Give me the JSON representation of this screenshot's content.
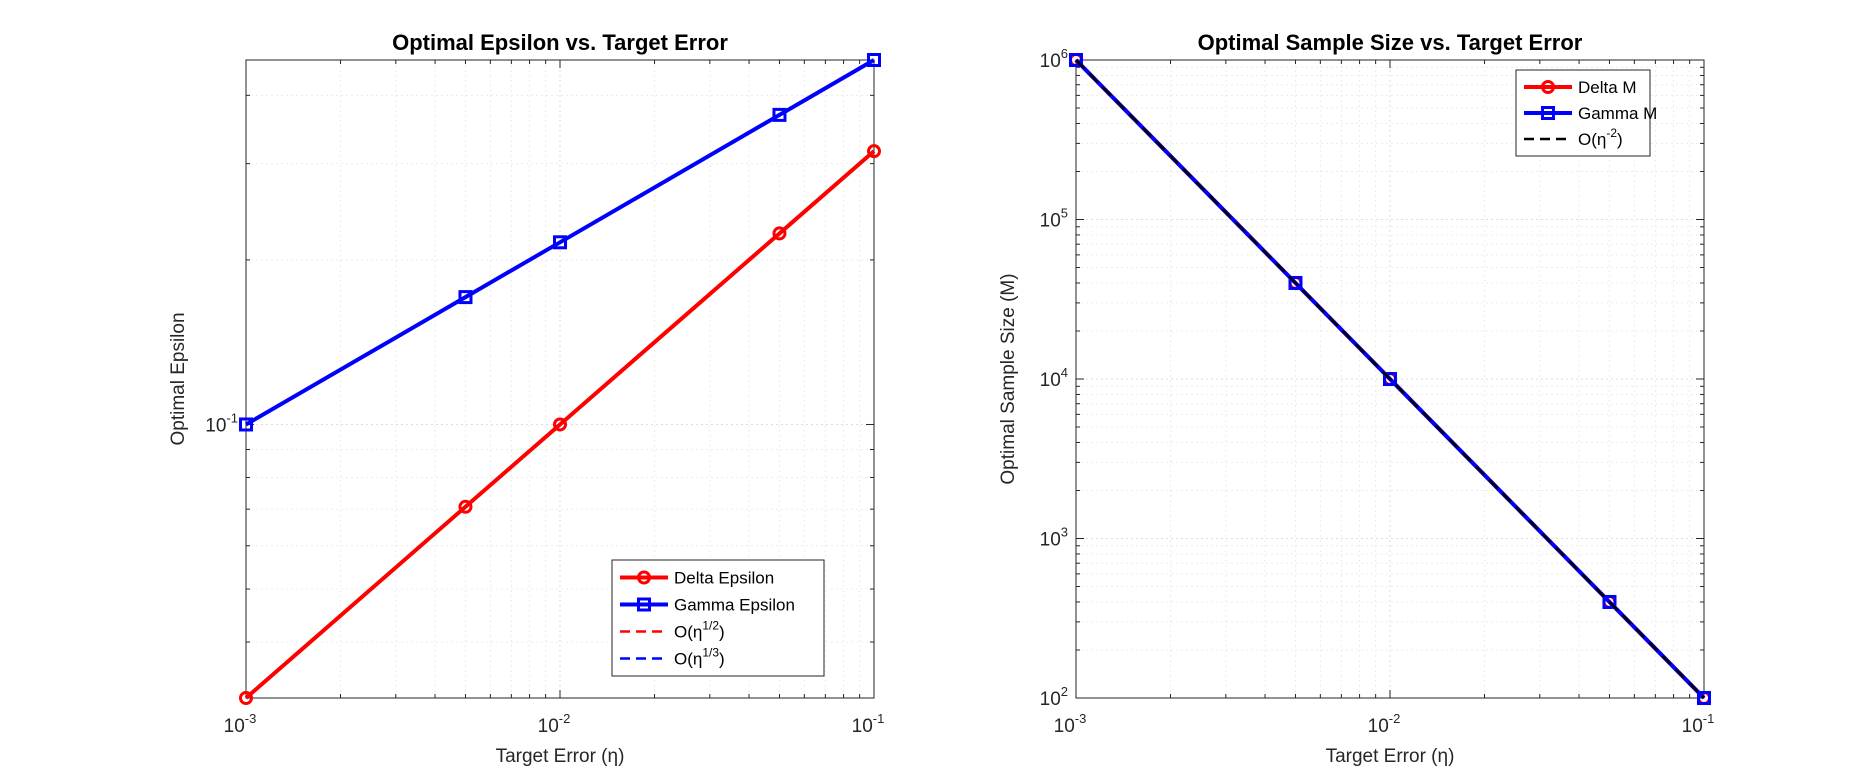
{
  "chart_data": [
    {
      "type": "line",
      "title": "Optimal Epsilon vs. Target Error",
      "xlabel": "Target Error (η)",
      "ylabel": "Optimal Epsilon",
      "xscale": "log",
      "yscale": "log",
      "xlim": [
        0.001,
        0.1
      ],
      "ylim": [
        0.0316,
        0.4642
      ],
      "xticks": [
        {
          "base": "10",
          "exp": "-3"
        },
        {
          "base": "10",
          "exp": "-2"
        },
        {
          "base": "10",
          "exp": "-1"
        }
      ],
      "yticks": [
        {
          "value": 0.1,
          "base": "10",
          "exp": "-1"
        }
      ],
      "grid": true,
      "legend_position": "bottom-right",
      "x": [
        0.001,
        0.005,
        0.01,
        0.05,
        0.1
      ],
      "series": [
        {
          "name": "Delta Epsilon",
          "values": [
            0.0316,
            0.0707,
            0.1,
            0.2236,
            0.3162
          ],
          "color": "#ff0000",
          "marker": "circle",
          "style": "solid"
        },
        {
          "name": "Gamma Epsilon",
          "values": [
            0.1,
            0.171,
            0.2154,
            0.3684,
            0.4642
          ],
          "color": "#0000ff",
          "marker": "square",
          "style": "solid"
        },
        {
          "name": "O(η^{1/2})",
          "values": [
            0.0316,
            0.0707,
            0.1,
            0.2236,
            0.3162
          ],
          "color": "#ff0000",
          "marker": "none",
          "style": "dashed"
        },
        {
          "name": "O(η^{1/3})",
          "values": [
            0.1,
            0.171,
            0.2154,
            0.3684,
            0.4642
          ],
          "color": "#0000ff",
          "marker": "none",
          "style": "dashed"
        }
      ],
      "legend": [
        {
          "prefix": "Delta Epsilon",
          "sup": "",
          "suffix": ""
        },
        {
          "prefix": "Gamma Epsilon",
          "sup": "",
          "suffix": ""
        },
        {
          "prefix": "O(η",
          "sup": "1/2",
          "suffix": ")"
        },
        {
          "prefix": "O(η",
          "sup": "1/3",
          "suffix": ")"
        }
      ]
    },
    {
      "type": "line",
      "title": "Optimal Sample Size vs. Target Error",
      "xlabel": "Target Error (η)",
      "ylabel": "Optimal Sample Size (M)",
      "xscale": "log",
      "yscale": "log",
      "xlim": [
        0.001,
        0.1
      ],
      "ylim": [
        100,
        1000000
      ],
      "xticks": [
        {
          "base": "10",
          "exp": "-3"
        },
        {
          "base": "10",
          "exp": "-2"
        },
        {
          "base": "10",
          "exp": "-1"
        }
      ],
      "yticks": [
        {
          "value": 100,
          "base": "10",
          "exp": "2"
        },
        {
          "value": 1000,
          "base": "10",
          "exp": "3"
        },
        {
          "value": 10000,
          "base": "10",
          "exp": "4"
        },
        {
          "value": 100000,
          "base": "10",
          "exp": "5"
        },
        {
          "value": 1000000,
          "base": "10",
          "exp": "6"
        }
      ],
      "grid": true,
      "legend_position": "top-right",
      "x": [
        0.001,
        0.005,
        0.01,
        0.05,
        0.1
      ],
      "series": [
        {
          "name": "Delta M",
          "values": [
            1000000,
            40000,
            10000,
            400,
            100
          ],
          "color": "#ff0000",
          "marker": "circle",
          "style": "solid"
        },
        {
          "name": "Gamma M",
          "values": [
            1000000,
            40000,
            10000,
            400,
            100
          ],
          "color": "#0000ff",
          "marker": "square",
          "style": "solid"
        },
        {
          "name": "O(η^{-2})",
          "values": [
            1000000,
            40000,
            10000,
            400,
            100
          ],
          "color": "#000000",
          "marker": "none",
          "style": "dashed"
        }
      ],
      "legend": [
        {
          "prefix": "Delta M",
          "sup": "",
          "suffix": ""
        },
        {
          "prefix": "Gamma M",
          "sup": "",
          "suffix": ""
        },
        {
          "prefix": "O(η",
          "sup": "-2",
          "suffix": ")"
        }
      ]
    }
  ]
}
